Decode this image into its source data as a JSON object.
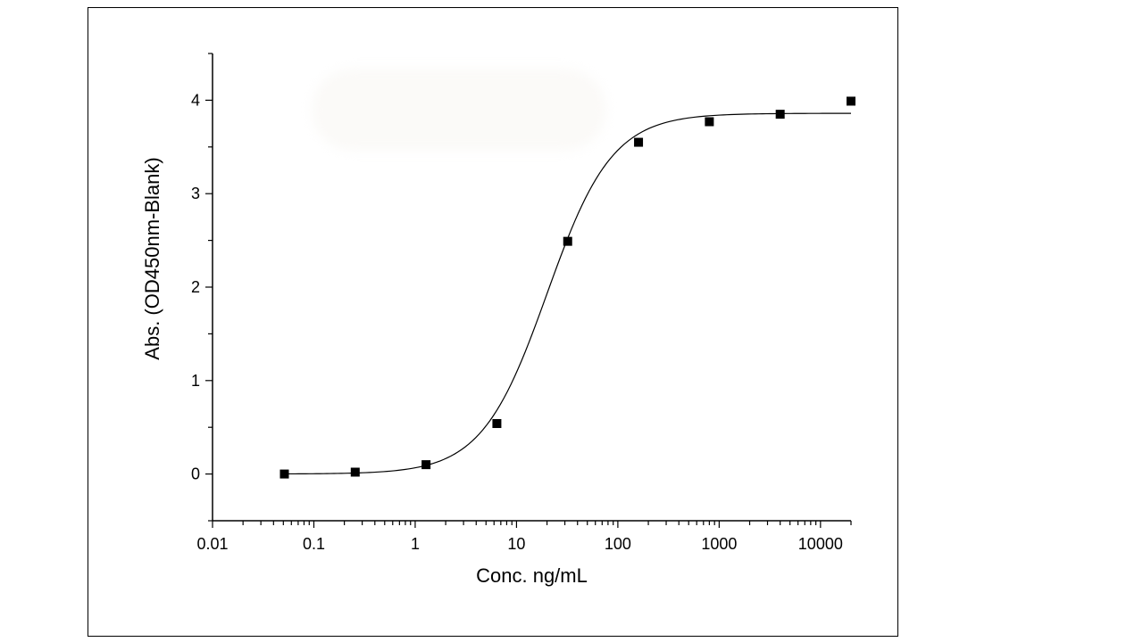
{
  "chart_data": {
    "type": "scatter",
    "x_scale": "log",
    "xlabel": "Conc. ng/mL",
    "ylabel": "Abs. (OD450nm-Blank)",
    "xlim": [
      0.01,
      20000
    ],
    "ylim": [
      -0.5,
      4.5
    ],
    "x_ticks": [
      0.01,
      0.1,
      1,
      10,
      100,
      1000,
      10000
    ],
    "x_tick_labels": [
      "0.01",
      "0.1",
      "1",
      "10",
      "100",
      "1000",
      "10000"
    ],
    "y_ticks": [
      0,
      1,
      2,
      3,
      4
    ],
    "y_tick_labels": [
      "0",
      "1",
      "2",
      "3",
      "4"
    ],
    "grid": false,
    "series": [
      {
        "marker": "square",
        "x": [
          0.0512,
          0.256,
          1.28,
          6.4,
          32,
          160,
          800,
          4000,
          20000
        ],
        "y": [
          0.0,
          0.02,
          0.1,
          0.54,
          2.49,
          3.55,
          3.77,
          3.85,
          3.99
        ]
      }
    ],
    "fit": {
      "model": "4PL",
      "bottom": 0.0,
      "top": 3.86,
      "ec50": 20,
      "hill": 1.35
    },
    "colors": {
      "marker": "#000000",
      "line": "#000000",
      "axis": "#000000"
    }
  }
}
